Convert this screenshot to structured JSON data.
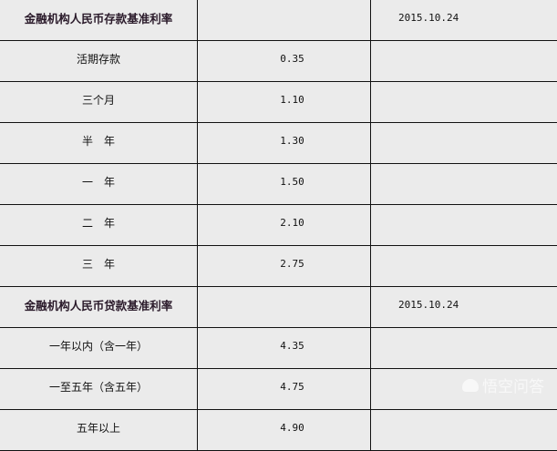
{
  "deposit": {
    "title": "金融机构人民币存款基准利率",
    "date": "2015.10.24",
    "rows": [
      {
        "term": "活期存款",
        "rate": "0.35"
      },
      {
        "term": "三个月",
        "rate": "1.10"
      },
      {
        "term": "半　年",
        "rate": "1.30"
      },
      {
        "term": "一　年",
        "rate": "1.50"
      },
      {
        "term": "二　年",
        "rate": "2.10"
      },
      {
        "term": "三　年",
        "rate": "2.75"
      }
    ]
  },
  "loan": {
    "title": "金融机构人民币贷款基准利率",
    "date": "2015.10.24",
    "rows": [
      {
        "term": "一年以内（含一年）",
        "rate": "4.35"
      },
      {
        "term": "一至五年（含五年）",
        "rate": "4.75"
      },
      {
        "term": "五年以上",
        "rate": "4.90"
      }
    ]
  },
  "watermark": {
    "text": "悟空问答",
    "icon": "wukong-logo-icon"
  }
}
